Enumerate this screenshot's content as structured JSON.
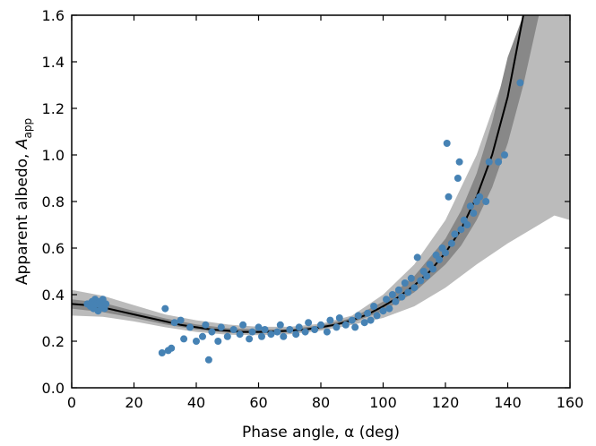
{
  "chart_data": {
    "type": "scatter",
    "xlabel": "Phase angle, α (deg)",
    "ylabel_prefix": "Apparent albedo, ",
    "ylabel_symbol": "A",
    "ylabel_subscript": "app",
    "xlim": [
      0,
      160
    ],
    "ylim": [
      0.0,
      1.6
    ],
    "x_ticks": [
      0,
      20,
      40,
      60,
      80,
      100,
      120,
      140,
      160
    ],
    "x_tick_labels": [
      "0",
      "20",
      "40",
      "60",
      "80",
      "100",
      "120",
      "140",
      "160"
    ],
    "y_ticks": [
      0.0,
      0.2,
      0.4,
      0.6,
      0.8,
      1.0,
      1.2,
      1.4,
      1.6
    ],
    "y_tick_labels": [
      "0.0",
      "0.2",
      "0.4",
      "0.6",
      "0.8",
      "1.0",
      "1.2",
      "1.4",
      "1.6"
    ],
    "grid": false,
    "colors": {
      "points": "#4682b4",
      "fit_line": "#000000",
      "band_inner": "#888888",
      "band_outer": "#bbbbbb"
    },
    "fit_curve": {
      "x": [
        0,
        5,
        10,
        15,
        20,
        25,
        30,
        35,
        40,
        45,
        50,
        55,
        60,
        65,
        70,
        75,
        80,
        85,
        90,
        95,
        100,
        105,
        110,
        115,
        120,
        125,
        130,
        135,
        140,
        145
      ],
      "y": [
        0.36,
        0.355,
        0.345,
        0.33,
        0.315,
        0.3,
        0.285,
        0.27,
        0.26,
        0.25,
        0.245,
        0.24,
        0.24,
        0.242,
        0.245,
        0.25,
        0.26,
        0.272,
        0.29,
        0.315,
        0.35,
        0.39,
        0.44,
        0.5,
        0.58,
        0.68,
        0.82,
        1.0,
        1.25,
        1.6
      ]
    },
    "band_inner": {
      "x": [
        0,
        10,
        20,
        30,
        40,
        50,
        60,
        70,
        80,
        90,
        100,
        110,
        120,
        125,
        130,
        135,
        140,
        145,
        150
      ],
      "lower": [
        0.34,
        0.325,
        0.3,
        0.272,
        0.25,
        0.236,
        0.233,
        0.238,
        0.252,
        0.28,
        0.33,
        0.41,
        0.53,
        0.61,
        0.72,
        0.86,
        1.05,
        1.3,
        1.6
      ],
      "upper": [
        0.38,
        0.365,
        0.33,
        0.298,
        0.272,
        0.256,
        0.25,
        0.253,
        0.268,
        0.3,
        0.37,
        0.48,
        0.64,
        0.76,
        0.92,
        1.14,
        1.42,
        1.6,
        1.6
      ]
    },
    "band_outer": {
      "x": [
        0,
        10,
        20,
        30,
        40,
        50,
        60,
        70,
        80,
        90,
        100,
        110,
        120,
        130,
        140,
        145,
        150,
        155,
        160
      ],
      "lower": [
        0.31,
        0.305,
        0.285,
        0.26,
        0.24,
        0.228,
        0.226,
        0.23,
        0.245,
        0.27,
        0.3,
        0.35,
        0.43,
        0.53,
        0.62,
        0.66,
        0.7,
        0.74,
        0.72
      ],
      "upper": [
        0.42,
        0.395,
        0.355,
        0.315,
        0.29,
        0.272,
        0.262,
        0.262,
        0.275,
        0.31,
        0.4,
        0.53,
        0.72,
        1.0,
        1.38,
        1.6,
        1.6,
        1.6,
        1.6
      ]
    },
    "points": [
      [
        5,
        0.36
      ],
      [
        6,
        0.35
      ],
      [
        6.5,
        0.37
      ],
      [
        7,
        0.34
      ],
      [
        7.5,
        0.38
      ],
      [
        8,
        0.36
      ],
      [
        8.5,
        0.33
      ],
      [
        9,
        0.37
      ],
      [
        9.5,
        0.35
      ],
      [
        10,
        0.38
      ],
      [
        10.5,
        0.34
      ],
      [
        11,
        0.36
      ],
      [
        29,
        0.15
      ],
      [
        30,
        0.34
      ],
      [
        31,
        0.16
      ],
      [
        32,
        0.17
      ],
      [
        33,
        0.28
      ],
      [
        35,
        0.29
      ],
      [
        36,
        0.21
      ],
      [
        38,
        0.26
      ],
      [
        40,
        0.2
      ],
      [
        42,
        0.22
      ],
      [
        43,
        0.27
      ],
      [
        44,
        0.12
      ],
      [
        45,
        0.24
      ],
      [
        47,
        0.2
      ],
      [
        48,
        0.26
      ],
      [
        50,
        0.22
      ],
      [
        52,
        0.25
      ],
      [
        54,
        0.23
      ],
      [
        55,
        0.27
      ],
      [
        57,
        0.21
      ],
      [
        58,
        0.24
      ],
      [
        60,
        0.26
      ],
      [
        61,
        0.22
      ],
      [
        62,
        0.25
      ],
      [
        64,
        0.23
      ],
      [
        66,
        0.24
      ],
      [
        67,
        0.27
      ],
      [
        68,
        0.22
      ],
      [
        70,
        0.25
      ],
      [
        72,
        0.23
      ],
      [
        73,
        0.26
      ],
      [
        75,
        0.24
      ],
      [
        76,
        0.28
      ],
      [
        78,
        0.25
      ],
      [
        80,
        0.27
      ],
      [
        82,
        0.24
      ],
      [
        83,
        0.29
      ],
      [
        85,
        0.26
      ],
      [
        86,
        0.3
      ],
      [
        88,
        0.27
      ],
      [
        90,
        0.29
      ],
      [
        91,
        0.26
      ],
      [
        92,
        0.31
      ],
      [
        94,
        0.28
      ],
      [
        95,
        0.32
      ],
      [
        96,
        0.29
      ],
      [
        97,
        0.35
      ],
      [
        98,
        0.31
      ],
      [
        100,
        0.33
      ],
      [
        101,
        0.38
      ],
      [
        102,
        0.34
      ],
      [
        103,
        0.4
      ],
      [
        104,
        0.37
      ],
      [
        105,
        0.42
      ],
      [
        106,
        0.39
      ],
      [
        107,
        0.45
      ],
      [
        108,
        0.41
      ],
      [
        109,
        0.47
      ],
      [
        110,
        0.43
      ],
      [
        111,
        0.56
      ],
      [
        112,
        0.46
      ],
      [
        113,
        0.5
      ],
      [
        114,
        0.48
      ],
      [
        115,
        0.53
      ],
      [
        116,
        0.51
      ],
      [
        117,
        0.57
      ],
      [
        118,
        0.55
      ],
      [
        119,
        0.6
      ],
      [
        120,
        0.58
      ],
      [
        120.5,
        1.05
      ],
      [
        121,
        0.82
      ],
      [
        122,
        0.62
      ],
      [
        123,
        0.66
      ],
      [
        124,
        0.9
      ],
      [
        124.5,
        0.97
      ],
      [
        125,
        0.68
      ],
      [
        126,
        0.72
      ],
      [
        127,
        0.7
      ],
      [
        128,
        0.78
      ],
      [
        129,
        0.75
      ],
      [
        130,
        0.8
      ],
      [
        131,
        0.82
      ],
      [
        133,
        0.8
      ],
      [
        134,
        0.97
      ],
      [
        137,
        0.97
      ],
      [
        139,
        1.0
      ],
      [
        144,
        1.31
      ]
    ]
  }
}
